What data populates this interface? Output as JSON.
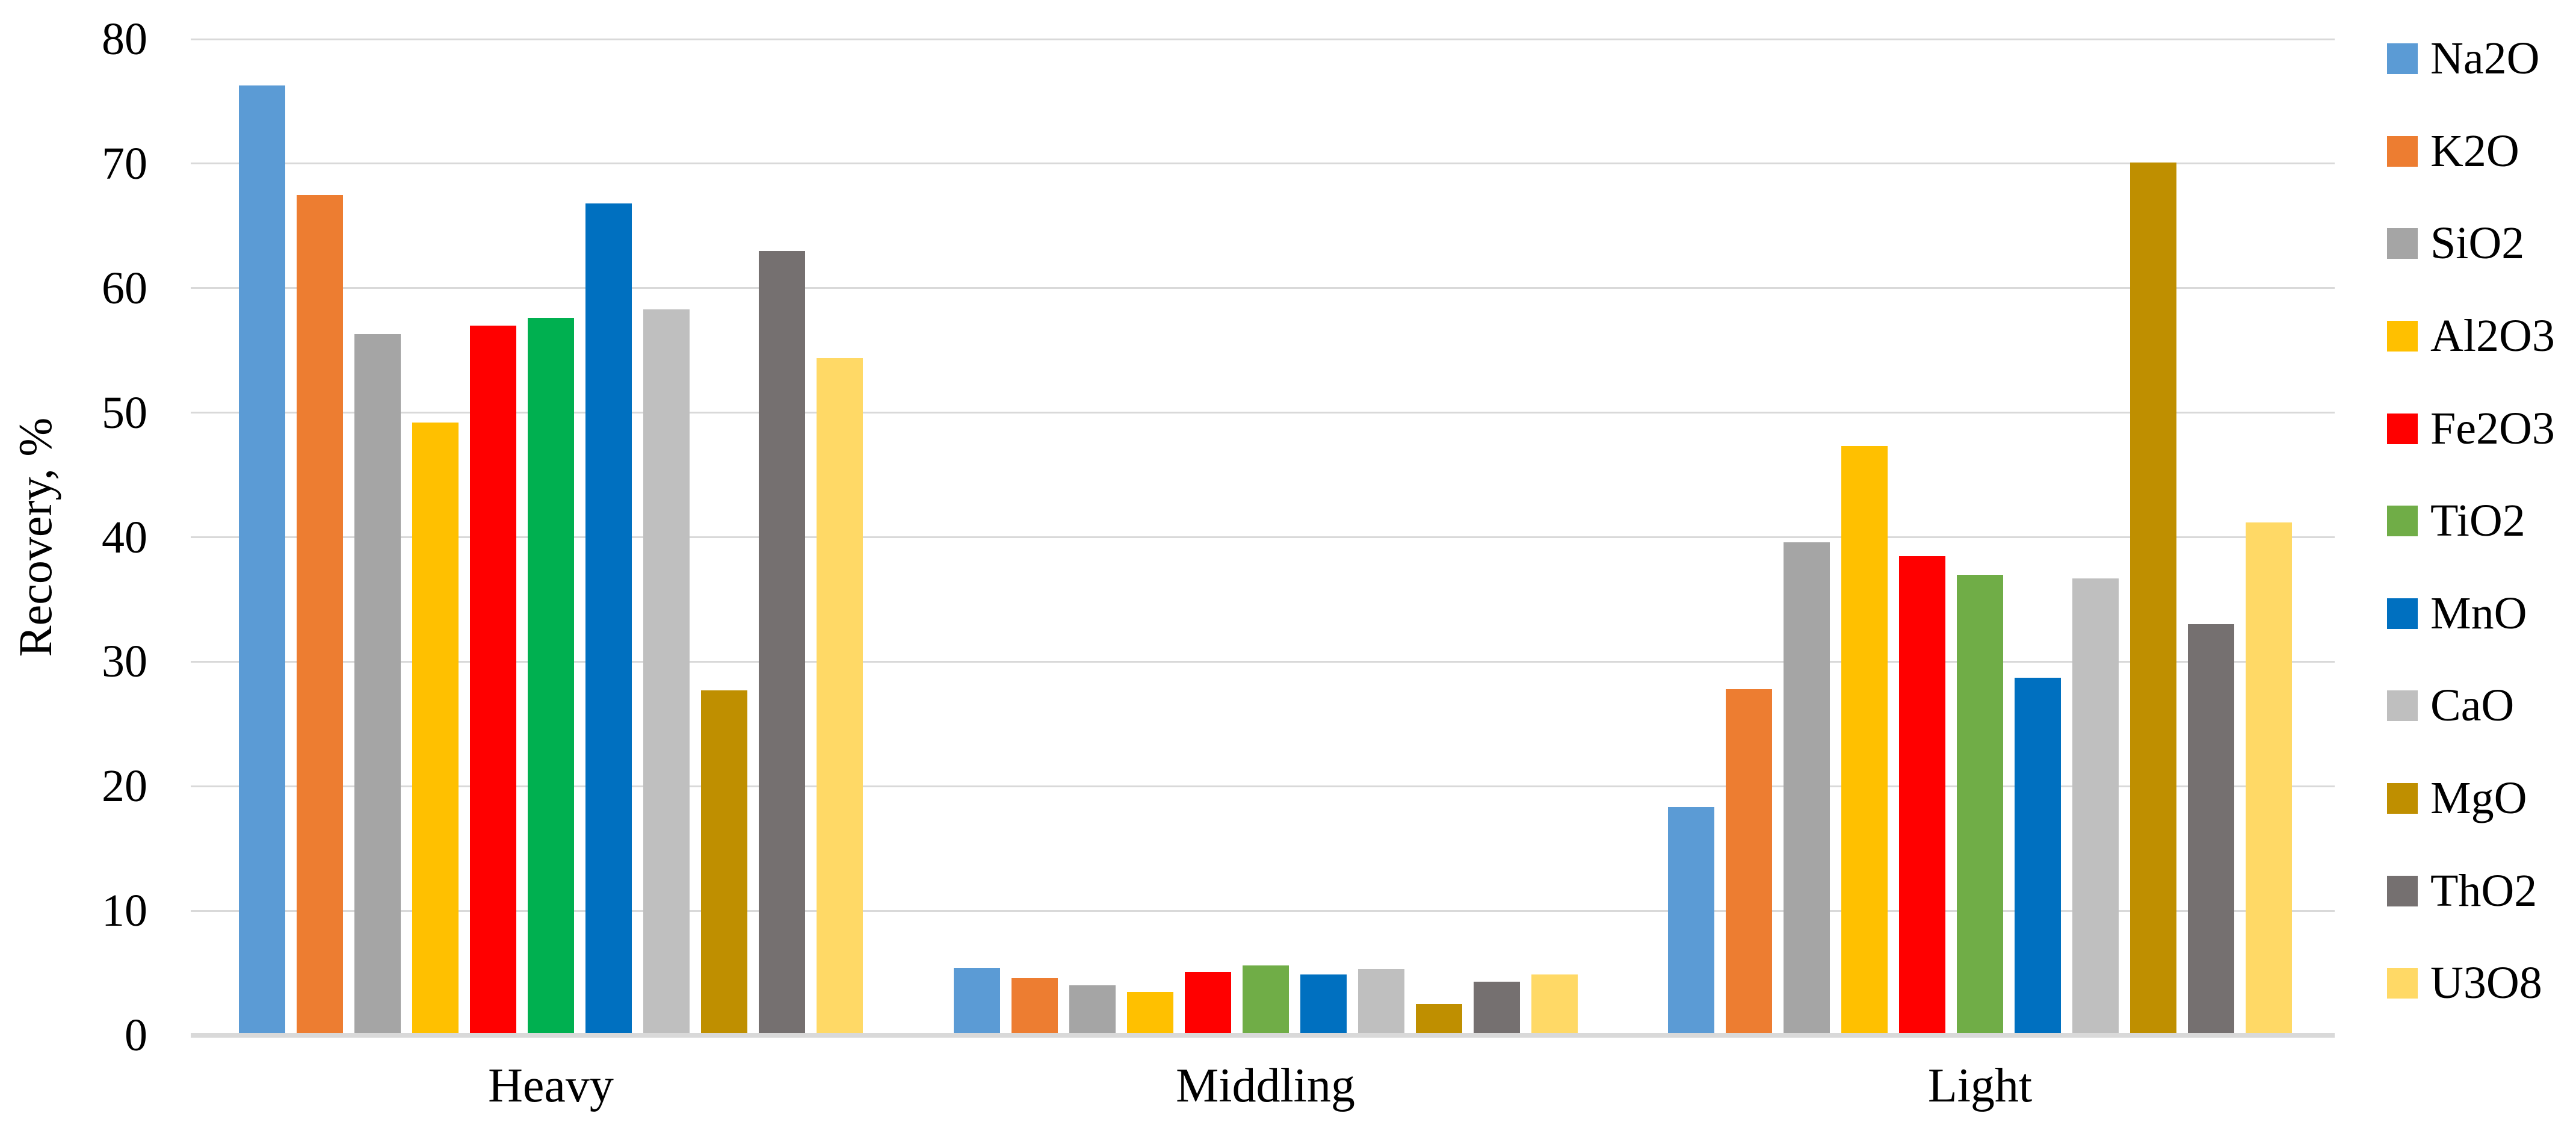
{
  "chart_data": {
    "type": "bar",
    "title": "",
    "xlabel": "",
    "ylabel": "Recovery, %",
    "ylim": [
      0,
      80
    ],
    "ytick_step": 10,
    "yticks": [
      0,
      10,
      20,
      30,
      40,
      50,
      60,
      70,
      80
    ],
    "grid": true,
    "legend_position": "right",
    "categories": [
      "Heavy",
      "Middling",
      "Light"
    ],
    "series": [
      {
        "name": "Na2O",
        "color": "#5B9BD5",
        "values": [
          76.3,
          5.4,
          18.3
        ]
      },
      {
        "name": "K2O",
        "color": "#ED7D31",
        "values": [
          67.5,
          4.6,
          27.8
        ]
      },
      {
        "name": "SiO2",
        "color": "#A5A5A5",
        "values": [
          56.3,
          4.0,
          39.6
        ]
      },
      {
        "name": "Al2O3",
        "color": "#FFC000",
        "values": [
          49.2,
          3.5,
          47.3
        ]
      },
      {
        "name": "Fe2O3",
        "color": "#FF0000",
        "values": [
          57.0,
          5.1,
          38.5
        ]
      },
      {
        "name": "TiO2",
        "color": "#70AD47",
        "values": [
          57.6,
          5.6,
          37.0
        ],
        "category_colors": [
          "#00B050",
          "#70AD47",
          "#70AD47"
        ]
      },
      {
        "name": "MnO",
        "color": "#0070C0",
        "values": [
          66.8,
          4.9,
          28.7
        ]
      },
      {
        "name": "CaO",
        "color": "#BFBFBF",
        "values": [
          58.3,
          5.3,
          36.7
        ]
      },
      {
        "name": "MgO",
        "color": "#BF8F00",
        "values": [
          27.7,
          2.5,
          70.1
        ]
      },
      {
        "name": "ThO2",
        "color": "#757070",
        "values": [
          63.0,
          4.3,
          33.0
        ]
      },
      {
        "name": "U3O8",
        "color": "#FFD966",
        "values": [
          54.4,
          4.9,
          41.2
        ]
      }
    ],
    "style": {
      "grid_color": "#D9D9D9",
      "axis_line_color": "#D9D9D9",
      "text_color": "#000000"
    }
  }
}
